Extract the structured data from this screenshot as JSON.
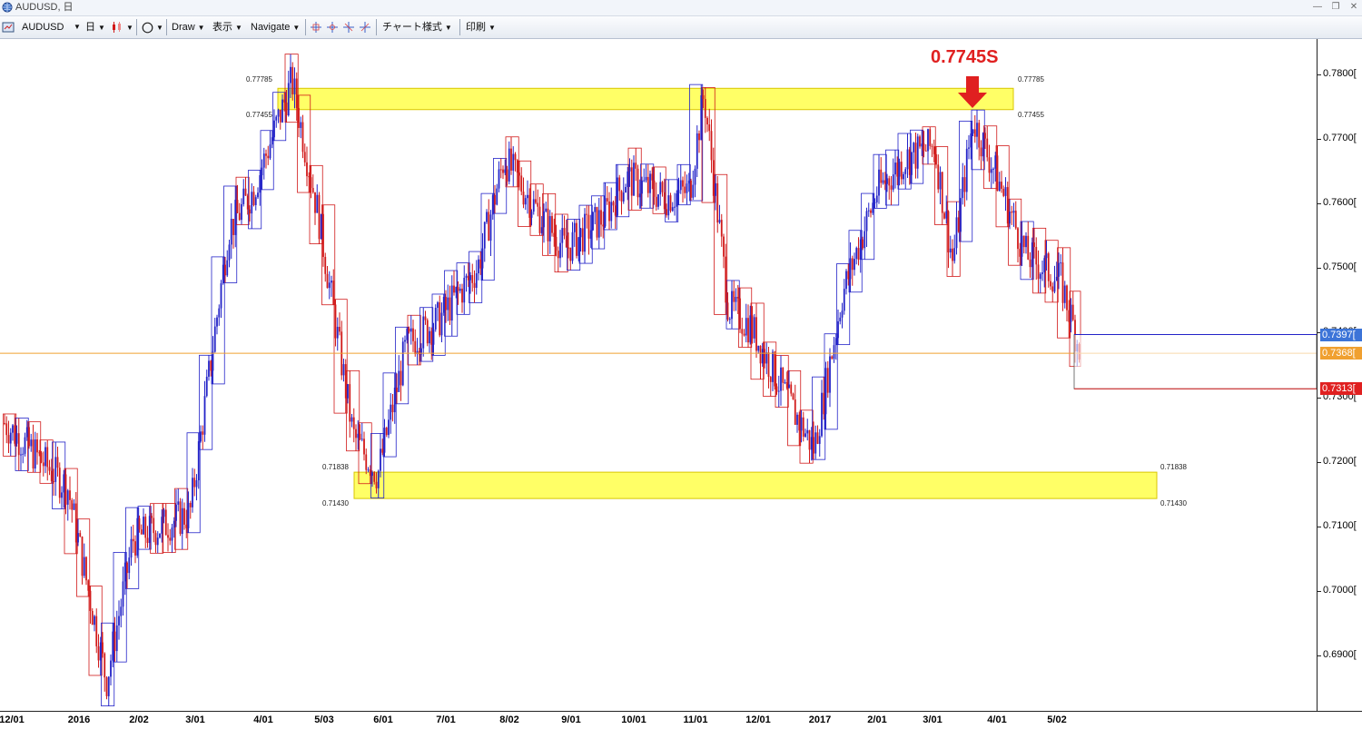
{
  "window": {
    "title": "AUDUSD, 日"
  },
  "toolbar": {
    "symbol": "AUDUSD",
    "timeframe": "日",
    "draw": "Draw",
    "display": "表示",
    "navigate": "Navigate",
    "chart_style": "チャート様式",
    "print": "印刷"
  },
  "colors": {
    "bull": "#2323c8",
    "bear": "#d11a1a",
    "zone": "#ffff66",
    "current_line": "#f0a030",
    "badge_blue": "#3c74d8",
    "badge_orange": "#f0a030",
    "badge_red": "#e02020"
  },
  "annotation": {
    "text": "0.7745S",
    "icon": "red-down-arrow-icon"
  },
  "zones": [
    {
      "name": "resistance",
      "upper": 0.77785,
      "lower": 0.77455,
      "upper_label": "0.77785",
      "lower_label": "0.77455"
    },
    {
      "name": "support",
      "upper": 0.71838,
      "lower": 0.7143,
      "upper_label": "0.71838",
      "lower_label": "0.71430"
    }
  ],
  "price_badges": [
    {
      "text": "0.7397[",
      "price": 0.7397,
      "color": "blue"
    },
    {
      "text": "0.7368[",
      "price": 0.7368,
      "color": "orange"
    },
    {
      "text": "0.7313[",
      "price": 0.7313,
      "color": "red"
    }
  ],
  "chart_data": {
    "type": "candlestick",
    "symbol": "AUDUSD",
    "timeframe": "日",
    "ylim": [
      0.6815,
      0.7855
    ],
    "y_ticks": [
      "0.7800[",
      "0.7700[",
      "0.7600[",
      "0.7500[",
      "0.7400[",
      "0.7300[",
      "0.7200[",
      "0.7100[",
      "0.7000[",
      "0.6900["
    ],
    "y_tick_values": [
      0.78,
      0.77,
      0.76,
      0.75,
      0.74,
      0.73,
      0.72,
      0.71,
      0.7,
      0.69
    ],
    "x_ticks": [
      "12/01",
      "2016",
      "2/02",
      "3/01",
      "4/01",
      "5/03",
      "6/01",
      "7/01",
      "8/02",
      "9/01",
      "10/01",
      "11/01",
      "12/01",
      "2017",
      "2/01",
      "3/01",
      "4/01",
      "5/02"
    ],
    "current_price": 0.7368,
    "close_path": [
      [
        "2015-12-01",
        0.726
      ],
      [
        "2016-01-01",
        0.716
      ],
      [
        "2016-01-20",
        0.686
      ],
      [
        "2016-02-02",
        0.708
      ],
      [
        "2016-03-01",
        0.712
      ],
      [
        "2016-03-20",
        0.756
      ],
      [
        "2016-04-01",
        0.762
      ],
      [
        "2016-04-20",
        0.779
      ],
      [
        "2016-05-03",
        0.758
      ],
      [
        "2016-05-20",
        0.724
      ],
      [
        "2016-06-01",
        0.718
      ],
      [
        "2016-06-15",
        0.738
      ],
      [
        "2016-07-01",
        0.742
      ],
      [
        "2016-07-20",
        0.75
      ],
      [
        "2016-08-02",
        0.767
      ],
      [
        "2016-08-20",
        0.758
      ],
      [
        "2016-09-01",
        0.753
      ],
      [
        "2016-09-20",
        0.758
      ],
      [
        "2016-10-01",
        0.764
      ],
      [
        "2016-10-20",
        0.761
      ],
      [
        "2016-11-01",
        0.762
      ],
      [
        "2016-11-08",
        0.777
      ],
      [
        "2016-11-20",
        0.744
      ],
      [
        "2016-12-01",
        0.741
      ],
      [
        "2016-12-20",
        0.729
      ],
      [
        "2017-01-01",
        0.722
      ],
      [
        "2017-01-15",
        0.746
      ],
      [
        "2017-02-01",
        0.762
      ],
      [
        "2017-02-15",
        0.767
      ],
      [
        "2017-03-01",
        0.769
      ],
      [
        "2017-03-10",
        0.751
      ],
      [
        "2017-03-20",
        0.773
      ],
      [
        "2017-04-01",
        0.764
      ],
      [
        "2017-04-15",
        0.752
      ],
      [
        "2017-05-02",
        0.748
      ],
      [
        "2017-05-12",
        0.7368
      ]
    ]
  }
}
